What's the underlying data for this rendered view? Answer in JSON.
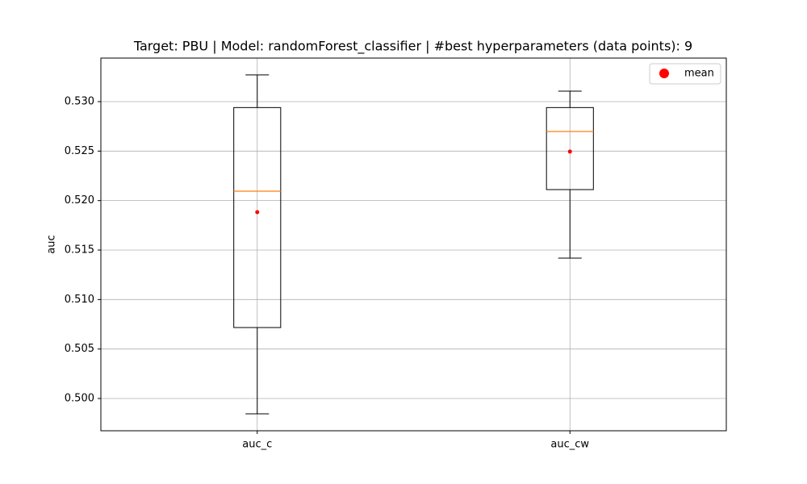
{
  "chart_data": {
    "type": "box",
    "title": "Target: PBU | Model: randomForest_classifier | #best hyperparameters (data points): 9",
    "ylabel": "auc",
    "categories": [
      "auc_c",
      "auc_cw"
    ],
    "boxes": [
      {
        "whislo": 0.49845,
        "q1": 0.50717,
        "med": 0.52095,
        "q3": 0.5294,
        "whishi": 0.5327,
        "mean": 0.51883
      },
      {
        "whislo": 0.51418,
        "q1": 0.52111,
        "med": 0.52698,
        "q3": 0.5294,
        "whishi": 0.53106,
        "mean": 0.52495
      }
    ],
    "mean_marker": {
      "name": "mean",
      "color": "#ff0000"
    },
    "median_color": "#ff7f0e",
    "ylim": [
      0.49674,
      0.5344
    ],
    "yticks": [
      {
        "value": 0.5,
        "label": "0.500"
      },
      0.505,
      {
        "value": 0.51,
        "label": "0.510"
      },
      0.515,
      {
        "value": 0.52,
        "label": "0.520"
      },
      0.525,
      {
        "value": 0.53,
        "label": "0.530"
      }
    ],
    "grid": true,
    "legend_loc": "upper right"
  }
}
